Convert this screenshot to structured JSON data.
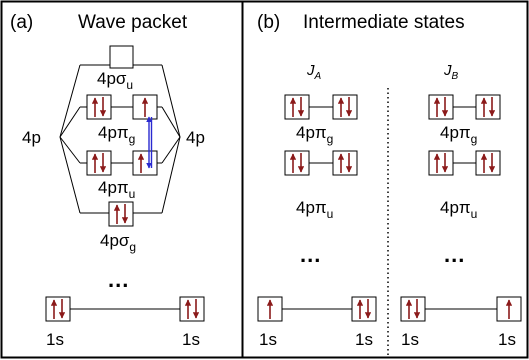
{
  "panels": {
    "a": {
      "tag": "(a)",
      "title": "Wave packet"
    },
    "b": {
      "tag": "(b)",
      "title": "Intermediate states"
    }
  },
  "orbitals": {
    "sigma_u": {
      "base": "4pσ",
      "sub": "u"
    },
    "pi_g": {
      "base": "4pπ",
      "sub": "g"
    },
    "pi_u": {
      "base": "4pπ",
      "sub": "u"
    },
    "sigma_g": {
      "base": "4pσ",
      "sub": "g"
    },
    "atomic_4p": "4p",
    "core_1s": "1s"
  },
  "ellipsis": "...",
  "columns": {
    "ja": {
      "base": "J",
      "sub": "A"
    },
    "jb": {
      "base": "J",
      "sub": "B"
    }
  },
  "colors": {
    "electron_arrow": "#8b1a1a",
    "excitation_arrow": "#2a2ad0",
    "frame": "#000000"
  }
}
